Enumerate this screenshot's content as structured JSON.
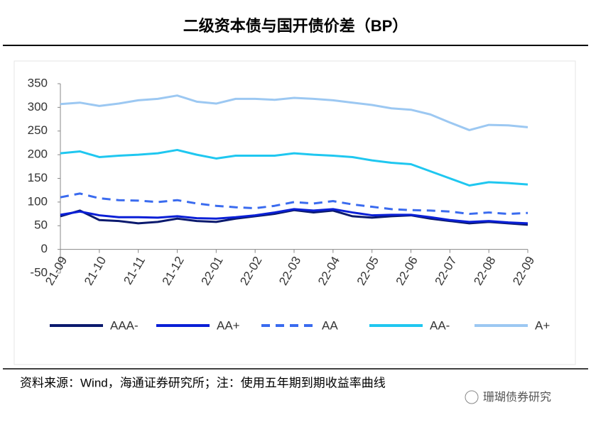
{
  "chart_data": {
    "type": "line",
    "title": "二级资本债与国开债价差（BP）",
    "source": "资料来源：Wind，海通证券研究所；注：使用五年期到期收益率曲线",
    "watermark": "珊瑚债券研究",
    "categories": [
      "21-09",
      null,
      "21-10",
      null,
      "21-11",
      null,
      "21-12",
      null,
      "22-01",
      null,
      "22-02",
      null,
      "22-03",
      null,
      "22-04",
      null,
      "22-05",
      null,
      "22-06",
      null,
      "22-07",
      null,
      "22-08",
      null,
      "22-09"
    ],
    "ylim": [
      -50,
      350
    ],
    "yticks": [
      -50,
      0,
      50,
      100,
      150,
      200,
      250,
      300,
      350
    ],
    "legend": "bottom",
    "series": [
      {
        "name": "AAA-",
        "color": "#0b1a6e",
        "dash": false,
        "values": [
          70,
          82,
          62,
          60,
          55,
          58,
          65,
          60,
          58,
          65,
          70,
          75,
          83,
          78,
          82,
          70,
          67,
          70,
          72,
          65,
          60,
          55,
          58,
          55,
          52
        ]
      },
      {
        "name": "AA+",
        "color": "#0a1fd6",
        "dash": false,
        "values": [
          73,
          80,
          72,
          68,
          68,
          67,
          70,
          66,
          65,
          68,
          72,
          78,
          85,
          82,
          85,
          78,
          72,
          73,
          73,
          68,
          62,
          58,
          60,
          57,
          55
        ]
      },
      {
        "name": "AA",
        "color": "#3a6bef",
        "dash": true,
        "values": [
          110,
          118,
          108,
          104,
          103,
          100,
          104,
          97,
          92,
          89,
          87,
          92,
          100,
          97,
          102,
          95,
          90,
          85,
          83,
          82,
          80,
          75,
          78,
          75,
          77
        ]
      },
      {
        "name": "AA-",
        "color": "#1fc7f0",
        "dash": false,
        "values": [
          203,
          207,
          195,
          198,
          200,
          203,
          210,
          200,
          192,
          198,
          198,
          198,
          203,
          200,
          198,
          195,
          188,
          183,
          180,
          165,
          150,
          135,
          142,
          140,
          137
        ]
      },
      {
        "name": "A+",
        "color": "#9cc8f2",
        "dash": false,
        "values": [
          307,
          310,
          303,
          308,
          315,
          318,
          325,
          312,
          308,
          318,
          318,
          316,
          320,
          318,
          315,
          310,
          305,
          298,
          295,
          285,
          268,
          252,
          263,
          262,
          258
        ]
      }
    ]
  }
}
